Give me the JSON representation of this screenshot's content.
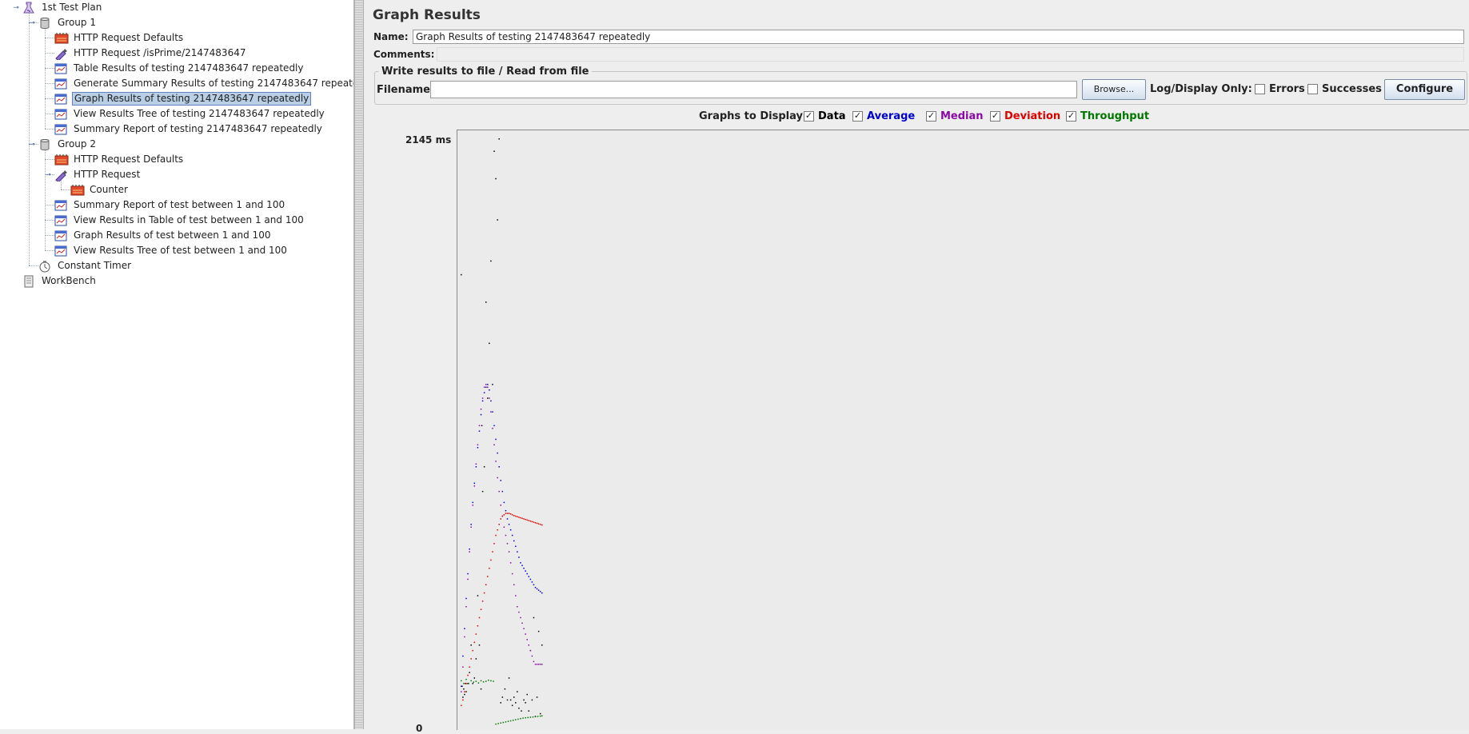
{
  "tree": {
    "items": [
      {
        "label": "1st Test Plan",
        "icon": "test-plan-icon",
        "level": 0
      },
      {
        "label": "Group 1",
        "icon": "thread-group-icon",
        "level": 1
      },
      {
        "label": "HTTP Request Defaults",
        "icon": "config-icon",
        "level": 2
      },
      {
        "label": "HTTP Request /isPrime/2147483647",
        "icon": "sampler-icon",
        "level": 2
      },
      {
        "label": "Table Results of testing 2147483647 repeatedly",
        "icon": "listener-icon",
        "level": 2
      },
      {
        "label": "Generate Summary Results of testing 2147483647 repeatedly",
        "icon": "listener-icon",
        "level": 2
      },
      {
        "label": "Graph Results of testing 2147483647 repeatedly",
        "icon": "listener-icon",
        "level": 2,
        "selected": true
      },
      {
        "label": "View Results Tree of testing 2147483647 repeatedly",
        "icon": "listener-icon",
        "level": 2
      },
      {
        "label": "Summary Report of testing 2147483647 repeatedly",
        "icon": "listener-icon",
        "level": 2
      },
      {
        "label": "Group 2",
        "icon": "thread-group-icon",
        "level": 1
      },
      {
        "label": "HTTP Request Defaults",
        "icon": "config-icon",
        "level": 2
      },
      {
        "label": "HTTP Request",
        "icon": "sampler-icon",
        "level": 2
      },
      {
        "label": "Counter",
        "icon": "config-icon",
        "level": 3
      },
      {
        "label": "Summary Report of test between 1 and 100",
        "icon": "listener-icon",
        "level": 2
      },
      {
        "label": "View Results in Table of test between 1 and 100",
        "icon": "listener-icon",
        "level": 2
      },
      {
        "label": "Graph Results of test between 1 and 100",
        "icon": "listener-icon",
        "level": 2
      },
      {
        "label": "View Results Tree of test between 1 and 100",
        "icon": "listener-icon",
        "level": 2
      },
      {
        "label": "Constant Timer",
        "icon": "timer-icon",
        "level": 1
      },
      {
        "label": "WorkBench",
        "icon": "workbench-icon",
        "level": 0
      }
    ]
  },
  "panel": {
    "title": "Graph Results",
    "name_label": "Name:",
    "name_value": "Graph Results of testing 2147483647 repeatedly",
    "comments_label": "Comments:",
    "comments_value": "",
    "file_section_title": "Write results to file / Read from file",
    "filename_label": "Filename",
    "filename_value": "",
    "browse_label": "Browse...",
    "log_display_label": "Log/Display Only:",
    "errors_label": "Errors",
    "successes_label": "Successes",
    "configure_label": "Configure",
    "graphs_to_display_label": "Graphs to Display",
    "graph_options": [
      {
        "label": "Data",
        "checked": true,
        "color": "#000000"
      },
      {
        "label": "Average",
        "checked": true,
        "color": "#0000cc"
      },
      {
        "label": "Median",
        "checked": true,
        "color": "#8b0aa5"
      },
      {
        "label": "Deviation",
        "checked": true,
        "color": "#dd0000"
      },
      {
        "label": "Throughput",
        "checked": true,
        "color": "#007700"
      }
    ]
  },
  "graph": {
    "y_max_label": "2145  ms",
    "y_min_label": "0"
  },
  "chart_data": {
    "type": "scatter",
    "ylim": [
      0,
      2145
    ],
    "ylabel": "ms",
    "series": [
      {
        "name": "Data",
        "color": "#000000",
        "x": [
          2,
          3,
          4,
          5,
          6,
          7,
          8,
          10,
          12,
          14,
          16,
          18,
          20,
          22,
          24,
          26,
          27,
          28,
          30,
          32,
          34,
          36,
          38,
          40,
          42,
          44,
          46,
          48,
          50,
          52,
          55,
          58,
          60,
          62,
          64,
          66,
          68,
          70,
          72,
          75,
          78,
          80,
          82,
          84,
          86,
          88,
          90,
          92,
          94,
          96,
          98,
          100
        ],
        "y": [
          1650,
          150,
          110,
          140,
          120,
          160,
          130,
          160,
          200,
          300,
          160,
          180,
          250,
          480,
          300,
          140,
          1100,
          860,
          950,
          1550,
          1200,
          1400,
          1700,
          1250,
          2100,
          2000,
          1850,
          2145,
          90,
          110,
          140,
          100,
          180,
          100,
          80,
          110,
          90,
          130,
          70,
          60,
          100,
          90,
          120,
          60,
          280,
          100,
          400,
          40,
          110,
          350,
          50,
          300
        ]
      },
      {
        "name": "Average",
        "color": "#0000cc",
        "x": [
          2,
          4,
          6,
          8,
          10,
          12,
          14,
          16,
          18,
          20,
          22,
          24,
          26,
          28,
          30,
          32,
          34,
          36,
          38,
          40,
          42,
          44,
          46,
          48,
          50,
          52,
          54,
          56,
          58,
          60,
          62,
          64,
          66,
          68,
          70,
          72,
          74,
          76,
          78,
          80,
          82,
          84,
          86,
          88,
          90,
          92,
          94,
          96,
          98,
          100
        ],
        "y": [
          150,
          260,
          360,
          470,
          560,
          650,
          740,
          820,
          890,
          950,
          1020,
          1080,
          1140,
          1190,
          1220,
          1240,
          1250,
          1230,
          1190,
          1150,
          1100,
          1050,
          1000,
          950,
          900,
          860,
          820,
          790,
          760,
          740,
          720,
          700,
          680,
          660,
          640,
          620,
          600,
          590,
          580,
          570,
          560,
          550,
          540,
          530,
          520,
          510,
          505,
          500,
          495,
          490
        ]
      },
      {
        "name": "Median",
        "color": "#8b0aa5",
        "x": [
          2,
          4,
          6,
          8,
          10,
          12,
          14,
          16,
          18,
          20,
          22,
          24,
          26,
          28,
          30,
          32,
          34,
          36,
          38,
          40,
          42,
          44,
          46,
          48,
          50,
          52,
          54,
          56,
          58,
          60,
          62,
          64,
          66,
          68,
          70,
          72,
          74,
          76,
          78,
          80,
          82,
          84,
          86,
          88,
          90,
          92,
          94,
          96,
          98,
          100
        ],
        "y": [
          130,
          220,
          330,
          440,
          540,
          640,
          730,
          810,
          880,
          960,
          1030,
          1100,
          1160,
          1200,
          1240,
          1250,
          1240,
          1200,
          1150,
          1090,
          1030,
          970,
          910,
          860,
          810,
          770,
          730,
          700,
          670,
          640,
          600,
          560,
          520,
          480,
          440,
          420,
          400,
          380,
          360,
          340,
          320,
          300,
          280,
          260,
          240,
          230,
          230,
          230,
          230,
          230
        ]
      },
      {
        "name": "Deviation",
        "color": "#dd0000",
        "x": [
          2,
          4,
          6,
          8,
          10,
          12,
          14,
          16,
          18,
          20,
          22,
          24,
          26,
          28,
          30,
          32,
          34,
          36,
          38,
          40,
          42,
          44,
          46,
          48,
          50,
          52,
          54,
          56,
          58,
          60,
          62,
          64,
          66,
          68,
          70,
          72,
          74,
          76,
          78,
          80,
          82,
          84,
          86,
          88,
          90,
          92,
          94,
          96,
          98,
          100
        ],
        "y": [
          80,
          100,
          130,
          160,
          190,
          220,
          250,
          280,
          310,
          340,
          370,
          400,
          430,
          460,
          490,
          520,
          550,
          580,
          610,
          640,
          670,
          700,
          720,
          740,
          760,
          770,
          775,
          780,
          780,
          780,
          778,
          775,
          772,
          770,
          768,
          766,
          764,
          762,
          760,
          758,
          756,
          754,
          752,
          750,
          748,
          746,
          744,
          742,
          740,
          738
        ]
      },
      {
        "name": "Throughput",
        "color": "#007700",
        "x": [
          2,
          5,
          8,
          11,
          14,
          17,
          20,
          23,
          26,
          29,
          32,
          35,
          38,
          41,
          44,
          47,
          50,
          53,
          56,
          59,
          62,
          65,
          68,
          71,
          74,
          77,
          80,
          83,
          86,
          89,
          92,
          95,
          98,
          100
        ],
        "y": [
          170,
          160,
          175,
          160,
          170,
          165,
          168,
          162,
          170,
          166,
          168,
          172,
          170,
          168,
          12,
          14,
          16,
          18,
          20,
          22,
          24,
          26,
          28,
          30,
          32,
          34,
          35,
          36,
          37,
          38,
          39,
          40,
          41,
          42
        ]
      }
    ]
  }
}
